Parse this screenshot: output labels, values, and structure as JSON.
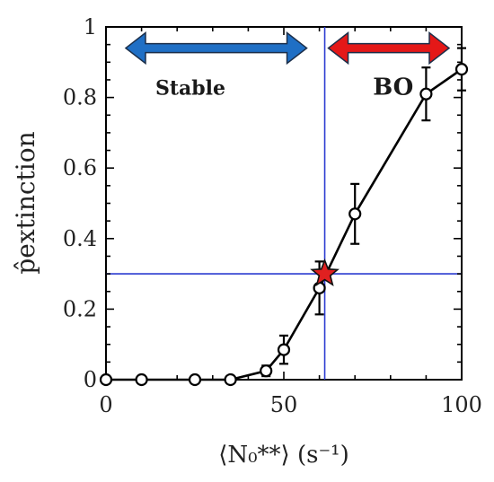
{
  "chart_data": {
    "type": "line",
    "xlabel": "⟨N₀**⟩ (s⁻¹)",
    "ylabel": "p̂extinction",
    "xlim": [
      0,
      100
    ],
    "ylim": [
      0,
      1
    ],
    "x_ticks": [
      0,
      50,
      100
    ],
    "y_ticks": [
      0,
      0.2,
      0.4,
      0.6,
      0.8,
      1
    ],
    "x_tick_labels": [
      "0",
      "50",
      "100"
    ],
    "y_tick_labels": [
      "0",
      "0.2",
      "0.4",
      "0.6",
      "0.8",
      "1"
    ],
    "grid": false,
    "series": [
      {
        "x": [
          0,
          10,
          25,
          35,
          45,
          50,
          60,
          70,
          90,
          100
        ],
        "y": [
          0,
          0,
          0,
          0,
          0.025,
          0.085,
          0.26,
          0.47,
          0.81,
          0.88
        ],
        "error": [
          0,
          0,
          0,
          0,
          0.015,
          0.04,
          0.075,
          0.085,
          0.075,
          0.06
        ],
        "color": "#000000",
        "marker": "open-circle"
      }
    ],
    "reference_lines": {
      "vertical_x": 61.5,
      "horizontal_y": 0.3,
      "color": "#2b3bd1"
    },
    "highlight_point": {
      "x": 61.5,
      "y": 0.3,
      "marker": "star",
      "color": "#e02020"
    },
    "regions": [
      {
        "label": "Stable",
        "x_from": 0,
        "x_to": 61.5,
        "arrow_color": "#1f6fc5"
      },
      {
        "label": "BO",
        "x_from": 61.5,
        "x_to": 100,
        "arrow_color": "#e41818"
      }
    ]
  }
}
